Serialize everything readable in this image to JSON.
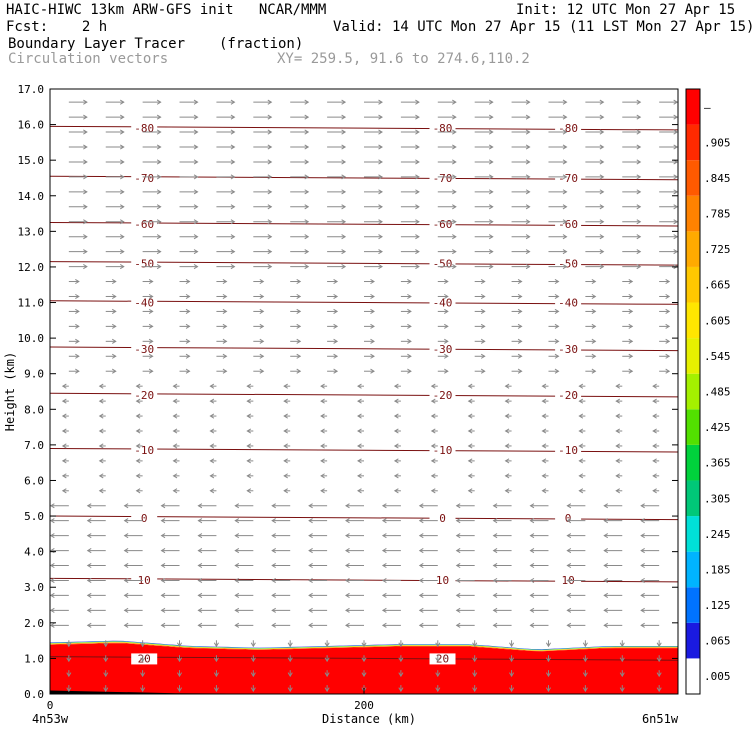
{
  "header": {
    "line1_left": "HAIC-HIWC 13km ARW-GFS init   NCAR/MMM",
    "line1_right": "Init: 12 UTC Mon 27 Apr 15",
    "line2_left": "Fcst:    2 h",
    "line2_right": "Valid: 14 UTC Mon 27 Apr 15 (11 LST Mon 27 Apr 15)",
    "line3_left": "Boundary Layer Tracer",
    "line3_mid": "(fraction)",
    "line4_left": "Circulation vectors",
    "line4_mid": "XY= 259.5, 91.6 to 274.6,110.2"
  },
  "chart_data": {
    "type": "heatmap",
    "title": "Boundary Layer Tracer",
    "units": "(fraction)",
    "overlay": "Circulation vectors",
    "xlabel": "Distance (km)",
    "ylabel": "Height (km)",
    "xlim": [
      0,
      400
    ],
    "ylim": [
      0.0,
      17.0
    ],
    "x_ticks": [
      0,
      200
    ],
    "x_left_label": "4n53w",
    "x_right_label": "6n51w",
    "y_ticks": [
      "0.0",
      "1.0",
      "2.0",
      "3.0",
      "4.0",
      "5.0",
      "6.0",
      "7.0",
      "8.0",
      "9.0",
      "10.0",
      "11.0",
      "12.0",
      "13.0",
      "14.0",
      "15.0",
      "16.0",
      "17.0"
    ],
    "colorbar": {
      "labels": [
        ".005",
        ".065",
        ".125",
        ".185",
        ".245",
        ".305",
        ".365",
        ".425",
        ".485",
        ".545",
        ".605",
        ".665",
        ".725",
        ".785",
        ".845",
        ".905",
        "–"
      ],
      "colors": [
        "#ffffff",
        "#1a1ae0",
        "#0073ff",
        "#00b4ff",
        "#00e0d8",
        "#00c878",
        "#00d23c",
        "#52e000",
        "#a4f000",
        "#e6f000",
        "#ffe600",
        "#ffc800",
        "#ffaa00",
        "#ff8200",
        "#ff5a00",
        "#ff2a00",
        "#ff0000"
      ]
    },
    "temperature_contours": [
      {
        "label": "-80",
        "height_km": 15.9
      },
      {
        "label": "-70",
        "height_km": 14.5
      },
      {
        "label": "-60",
        "height_km": 13.2
      },
      {
        "label": "-50",
        "height_km": 12.1
      },
      {
        "label": "-40",
        "height_km": 11.0
      },
      {
        "label": "-30",
        "height_km": 9.7
      },
      {
        "label": "-20",
        "height_km": 8.4
      },
      {
        "label": "-10",
        "height_km": 6.85
      },
      {
        "label": "0",
        "height_km": 4.95
      },
      {
        "label": "10",
        "height_km": 3.2
      },
      {
        "label": "20",
        "height_km": 1.0
      }
    ],
    "boundary_layer_top_km": [
      1.45,
      1.5,
      1.35,
      1.3,
      1.35,
      1.4,
      1.4,
      1.25,
      1.35,
      1.35
    ],
    "wind_direction_by_height": [
      {
        "below_km": 1.7,
        "direction": "downward"
      },
      {
        "below_km": 5.5,
        "direction": "easterly"
      },
      {
        "below_km": 9.0,
        "direction": "weak easterly"
      },
      {
        "below_km": 17.0,
        "direction": "westerly"
      }
    ]
  }
}
